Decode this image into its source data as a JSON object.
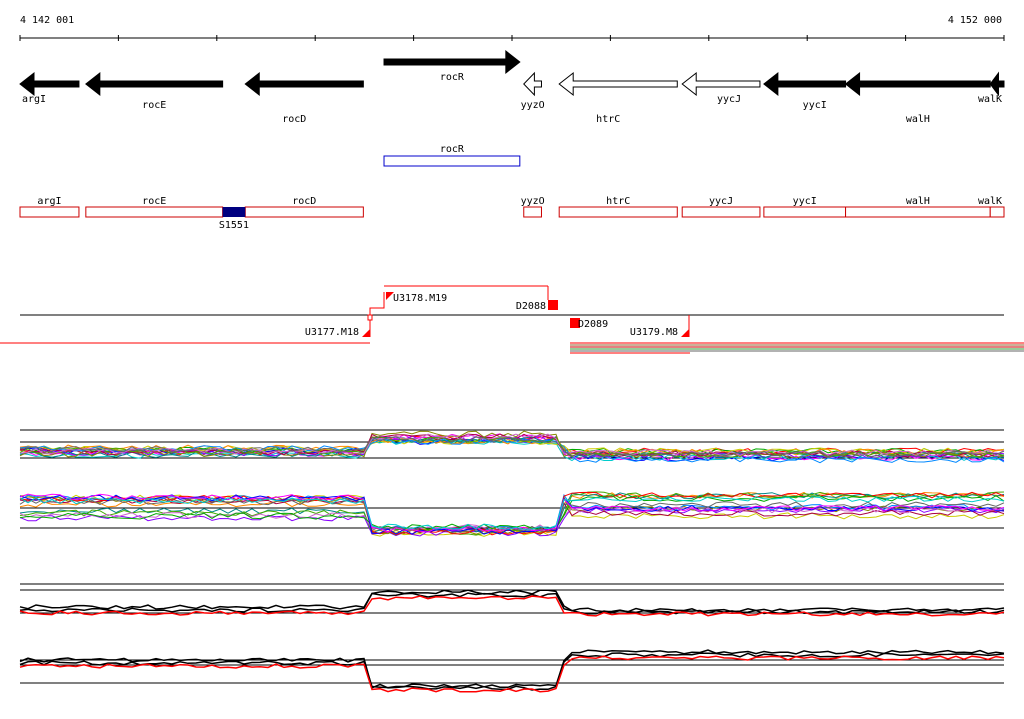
{
  "coords": {
    "start": "4 142 001",
    "end": "4 152 000",
    "start_bp": 4142001,
    "end_bp": 4152000
  },
  "genes": [
    {
      "name": "argI",
      "start_bp": 4142001,
      "end_bp": 4142600,
      "strand": "-",
      "label_pos": "below-left"
    },
    {
      "name": "rocE",
      "start_bp": 4142670,
      "end_bp": 4144060,
      "strand": "-",
      "label_pos": "below-mid"
    },
    {
      "name": "rocD",
      "start_bp": 4144290,
      "end_bp": 4145490,
      "strand": "-",
      "label_pos": "below-right"
    },
    {
      "name": "rocR",
      "start_bp": 4145700,
      "end_bp": 4147080,
      "strand": "+",
      "label_pos": "below-mid"
    },
    {
      "name": "yyzO",
      "start_bp": 4147120,
      "end_bp": 4147300,
      "strand": "-",
      "open": true,
      "label_pos": "below-mid"
    },
    {
      "name": "htrC",
      "start_bp": 4147480,
      "end_bp": 4148680,
      "strand": "-",
      "open": true,
      "label_pos": "below-right"
    },
    {
      "name": "yycJ",
      "start_bp": 4148730,
      "end_bp": 4149520,
      "strand": "-",
      "open": true,
      "label_pos": "below-right"
    },
    {
      "name": "yycI",
      "start_bp": 4149560,
      "end_bp": 4150390,
      "strand": "-",
      "label_pos": "below-right"
    },
    {
      "name": "walH",
      "start_bp": 4150390,
      "end_bp": 4151860,
      "strand": "-",
      "label_pos": "below-right"
    },
    {
      "name": "walK",
      "start_bp": 4151860,
      "end_bp": 4152000,
      "strand": "-",
      "label_pos": "below-right"
    }
  ],
  "blue_features": [
    {
      "name": "rocR",
      "start_bp": 4145700,
      "end_bp": 4147080
    }
  ],
  "red_features": [
    {
      "name": "argI",
      "start_bp": 4142001,
      "end_bp": 4142600
    },
    {
      "name": "rocE",
      "start_bp": 4142670,
      "end_bp": 4144060
    },
    {
      "name": "rocD",
      "start_bp": 4144290,
      "end_bp": 4145490
    },
    {
      "name": "yyzO",
      "start_bp": 4147120,
      "end_bp": 4147300
    },
    {
      "name": "htrC",
      "start_bp": 4147480,
      "end_bp": 4148680
    },
    {
      "name": "yycJ",
      "start_bp": 4148730,
      "end_bp": 4149520
    },
    {
      "name": "yycI",
      "start_bp": 4149560,
      "end_bp": 4150390
    },
    {
      "name": "walH",
      "start_bp": 4150390,
      "end_bp": 4151860
    },
    {
      "name": "walK",
      "start_bp": 4151860,
      "end_bp": 4152000
    }
  ],
  "marker": {
    "name": "S1551",
    "start_bp": 4144060,
    "end_bp": 4144290
  },
  "transcripts": [
    {
      "name": "U3177.M18"
    },
    {
      "name": "U3178.M19"
    },
    {
      "name": "D2088"
    },
    {
      "name": "D2089"
    },
    {
      "name": "U3179.M8"
    }
  ],
  "colors": {
    "gene_fill": "#000000",
    "feature_red": "#cc0000",
    "feature_blue": "#0000cc",
    "marker_fill": "#000080",
    "transcript_red": "#ff0000"
  }
}
